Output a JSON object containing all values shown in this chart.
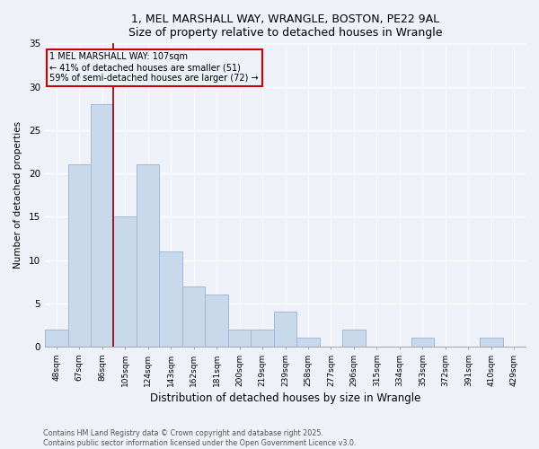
{
  "title": "1, MEL MARSHALL WAY, WRANGLE, BOSTON, PE22 9AL",
  "subtitle": "Size of property relative to detached houses in Wrangle",
  "xlabel": "Distribution of detached houses by size in Wrangle",
  "ylabel": "Number of detached properties",
  "categories": [
    "48sqm",
    "67sqm",
    "86sqm",
    "105sqm",
    "124sqm",
    "143sqm",
    "162sqm",
    "181sqm",
    "200sqm",
    "219sqm",
    "239sqm",
    "258sqm",
    "277sqm",
    "296sqm",
    "315sqm",
    "334sqm",
    "353sqm",
    "372sqm",
    "391sqm",
    "410sqm",
    "429sqm"
  ],
  "values": [
    2,
    21,
    28,
    15,
    21,
    11,
    7,
    6,
    2,
    2,
    4,
    1,
    0,
    2,
    0,
    0,
    1,
    0,
    0,
    1,
    0
  ],
  "bar_color": "#c8d9eb",
  "bar_edgecolor": "#a0b8d8",
  "vline_color": "#8b0000",
  "vline_x": 2.5,
  "annotation_text": "1 MEL MARSHALL WAY: 107sqm\n← 41% of detached houses are smaller (51)\n59% of semi-detached houses are larger (72) →",
  "annotation_box_edgecolor": "#cc0000",
  "background_color": "#eef2f8",
  "footer": "Contains HM Land Registry data © Crown copyright and database right 2025.\nContains public sector information licensed under the Open Government Licence v3.0.",
  "ylim": [
    0,
    35
  ],
  "yticks": [
    0,
    5,
    10,
    15,
    20,
    25,
    30,
    35
  ]
}
